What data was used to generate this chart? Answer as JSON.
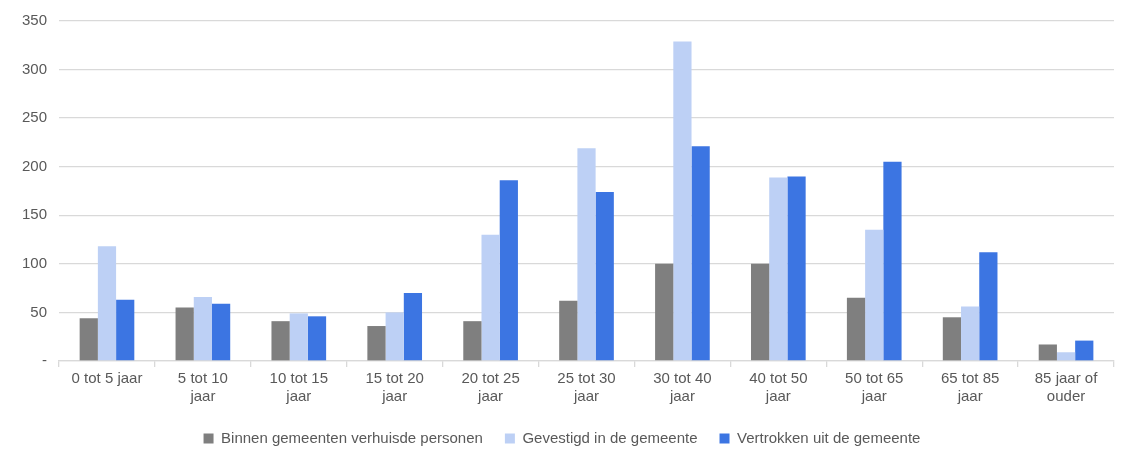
{
  "chart_data": {
    "type": "bar",
    "categories": [
      "0 tot 5 jaar",
      "5 tot 10 jaar",
      "10 tot 15 jaar",
      "15 tot 20 jaar",
      "20 tot 25 jaar",
      "25 tot 30 jaar",
      "30 tot 40 jaar",
      "40 tot 50 jaar",
      "50 tot 65 jaar",
      "65 tot 85 jaar",
      "85 jaar of ouder"
    ],
    "series": [
      {
        "name": "Binnen gemeenten verhuisde personen",
        "color": "#7f7f7f",
        "values": [
          44,
          55,
          41,
          36,
          41,
          62,
          100,
          100,
          65,
          45,
          17
        ]
      },
      {
        "name": "Gevestigd in de gemeente",
        "color": "#bdd0f5",
        "values": [
          118,
          66,
          49,
          50,
          130,
          219,
          329,
          189,
          135,
          56,
          9
        ]
      },
      {
        "name": "Vertrokken uit de gemeente",
        "color": "#3c75e2",
        "values": [
          63,
          59,
          46,
          70,
          186,
          174,
          221,
          190,
          205,
          112,
          21
        ]
      }
    ],
    "ylim": [
      0,
      350
    ],
    "yticks": [
      {
        "value": 0,
        "label": "-"
      },
      50,
      100,
      150,
      200,
      250,
      300,
      350
    ],
    "grid": "y",
    "legend": "bottom"
  }
}
